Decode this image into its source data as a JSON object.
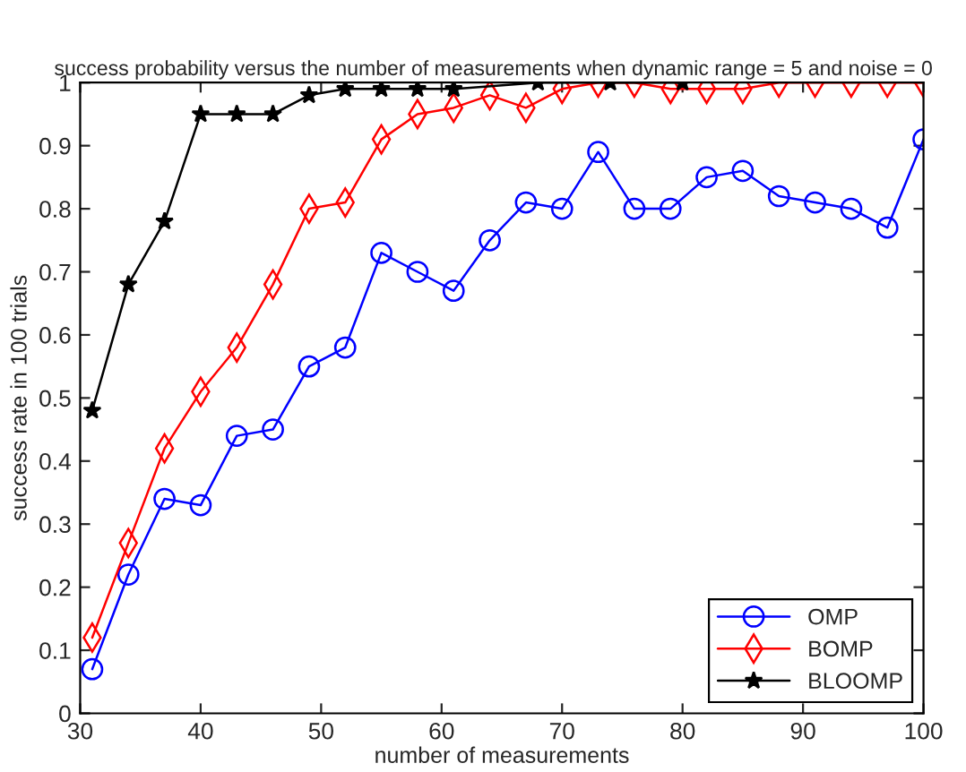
{
  "chart_data": {
    "type": "line",
    "title": "success probability versus the number of measurements when dynamic range = 5 and noise = 0",
    "xlabel": "number of measurements",
    "ylabel": "success rate in 100 trials",
    "x": [
      31,
      34,
      37,
      40,
      43,
      46,
      49,
      52,
      55,
      58,
      61,
      64,
      67,
      70,
      73,
      76,
      79,
      82,
      85,
      88,
      91,
      94,
      97,
      100
    ],
    "series": [
      {
        "name": "OMP",
        "color": "#0000ff",
        "marker": "circle",
        "values": [
          0.07,
          0.22,
          0.34,
          0.33,
          0.44,
          0.45,
          0.55,
          0.58,
          0.73,
          0.7,
          0.67,
          0.75,
          0.81,
          0.8,
          0.89,
          0.8,
          0.8,
          0.85,
          0.86,
          0.82,
          0.81,
          0.8,
          0.77,
          0.91
        ]
      },
      {
        "name": "BOMP",
        "color": "#ff0000",
        "marker": "diamond",
        "values": [
          0.12,
          0.27,
          0.42,
          0.51,
          0.58,
          0.68,
          0.8,
          0.81,
          0.91,
          0.95,
          0.96,
          0.98,
          0.96,
          0.99,
          1.0,
          1.0,
          0.99,
          0.99,
          0.99,
          1.0,
          1.0,
          1.0,
          1.0,
          1.0
        ]
      },
      {
        "name": "BLOOMP",
        "color": "#000000",
        "marker": "star",
        "x": [
          31,
          34,
          37,
          40,
          43,
          46,
          49,
          52,
          55,
          58,
          61,
          68,
          74,
          80
        ],
        "values": [
          0.48,
          0.68,
          0.78,
          0.95,
          0.95,
          0.95,
          0.98,
          0.99,
          0.99,
          0.99,
          0.99,
          1.0,
          1.0,
          1.0
        ]
      }
    ],
    "xlim": [
      30,
      100
    ],
    "xticks": [
      30,
      40,
      50,
      60,
      70,
      80,
      90,
      100
    ],
    "ylim": [
      0,
      1
    ],
    "yticks": [
      0,
      0.1,
      0.2,
      0.3,
      0.4,
      0.5,
      0.6,
      0.7,
      0.8,
      0.9,
      1
    ],
    "grid": false,
    "legend": "bottom right"
  }
}
